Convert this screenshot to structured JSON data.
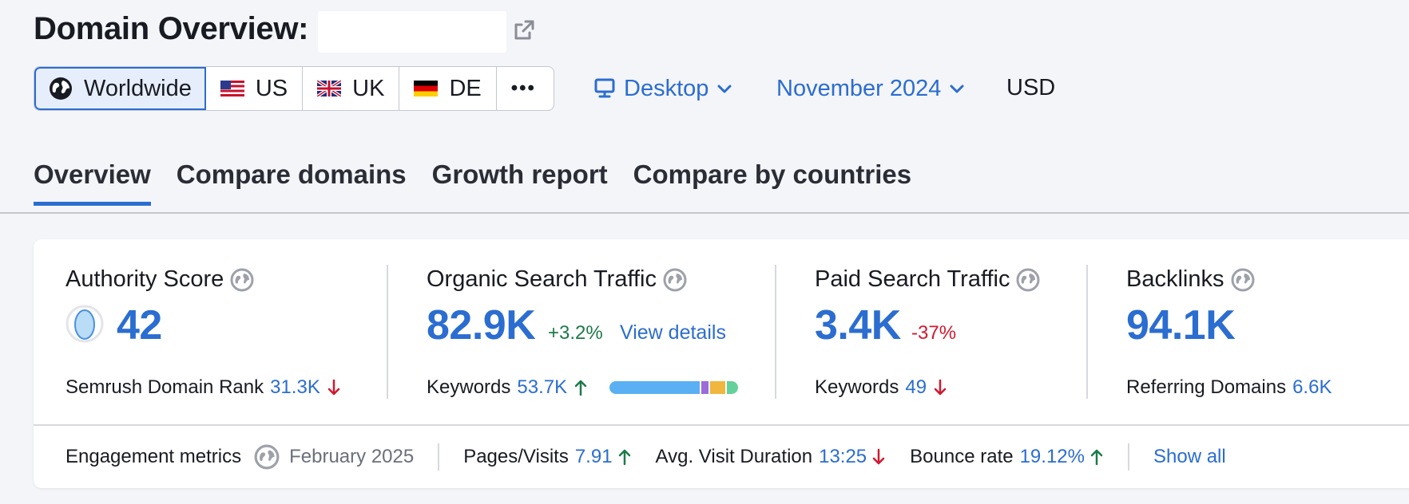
{
  "header": {
    "title": "Domain Overview:"
  },
  "databases": [
    {
      "label": "Worldwide",
      "icon": "globe-icon",
      "active": true
    },
    {
      "label": "US",
      "icon": "us-flag-icon"
    },
    {
      "label": "UK",
      "icon": "uk-flag-icon"
    },
    {
      "label": "DE",
      "icon": "de-flag-icon"
    },
    {
      "label": "•••",
      "icon": "more-icon"
    }
  ],
  "device": {
    "label": "Desktop",
    "icon": "desktop-icon"
  },
  "date": {
    "label": "November 2024"
  },
  "currency": "USD",
  "tabs": [
    {
      "label": "Overview",
      "active": true
    },
    {
      "label": "Compare domains"
    },
    {
      "label": "Growth report"
    },
    {
      "label": "Compare by countries"
    }
  ],
  "metrics": {
    "authority": {
      "label": "Authority Score",
      "value": "42",
      "rank_label": "Semrush Domain Rank",
      "rank_value": "31.3K",
      "rank_trend": "down"
    },
    "organic": {
      "label": "Organic Search Traffic",
      "value": "82.9K",
      "change": "+3.2%",
      "link": "View details",
      "keywords_label": "Keywords",
      "keywords_value": "53.7K",
      "keywords_trend": "up"
    },
    "paid": {
      "label": "Paid Search Traffic",
      "value": "3.4K",
      "change": "-37%",
      "keywords_label": "Keywords",
      "keywords_value": "49",
      "keywords_trend": "down"
    },
    "backlinks": {
      "label": "Backlinks",
      "value": "94.1K",
      "ref_label": "Referring Domains",
      "ref_value": "6.6K"
    }
  },
  "engagement": {
    "label": "Engagement metrics",
    "date": "February 2025",
    "pages_label": "Pages/Visits",
    "pages_value": "7.91",
    "pages_trend": "up",
    "duration_label": "Avg. Visit Duration",
    "duration_value": "13:25",
    "duration_trend": "down",
    "bounce_label": "Bounce rate",
    "bounce_value": "19.12%",
    "bounce_trend": "up",
    "show_all": "Show all"
  },
  "colors": {
    "accent": "#2b6dd0",
    "up": "#1d7a4a",
    "down": "#d1192f"
  }
}
